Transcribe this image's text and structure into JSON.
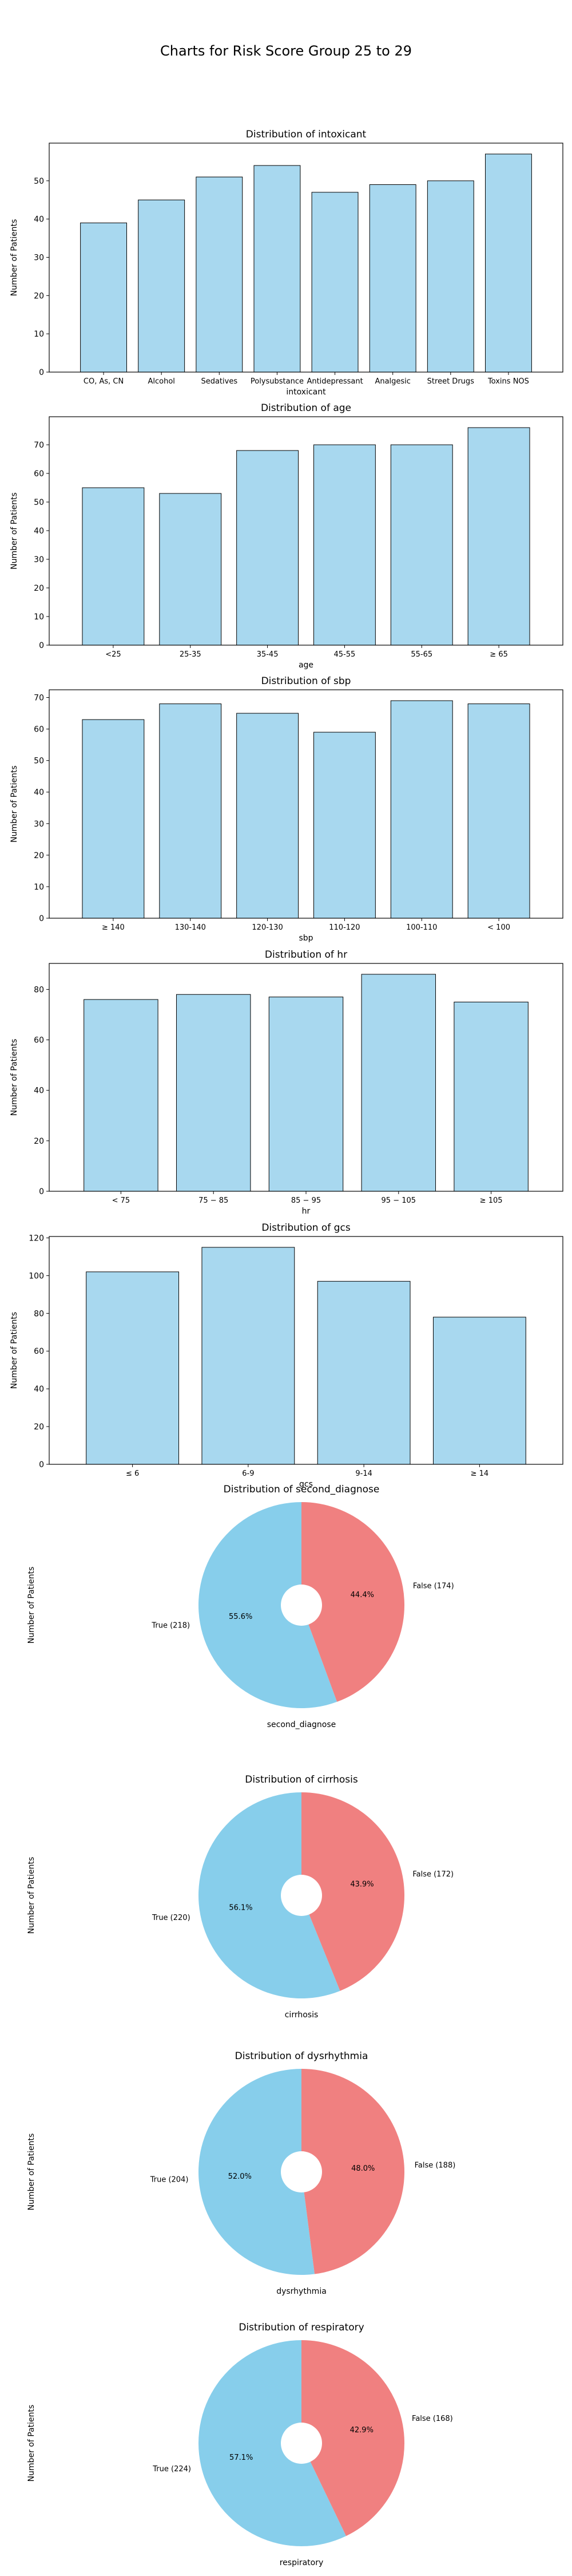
{
  "figure": {
    "title": "Charts for Risk Score Group 25 to 29"
  },
  "style": {
    "bar_color": "#a8d8ef",
    "pie_true_color": "#87ceeb",
    "pie_false_color": "#f08080"
  },
  "chart_data": [
    {
      "type": "bar",
      "title": "Distribution of intoxicant",
      "xlabel": "intoxicant",
      "ylabel": "Number of Patients",
      "categories": [
        "CO, As, CN",
        "Alcohol",
        "Sedatives",
        "Polysubstance",
        "Antidepressant",
        "Analgesic",
        "Street Drugs",
        "Toxins NOS"
      ],
      "values": [
        39,
        45,
        51,
        54,
        47,
        49,
        50,
        57
      ],
      "ylim": [
        0,
        59.85
      ],
      "yticks": [
        0,
        10,
        20,
        30,
        40,
        50
      ],
      "grid": false
    },
    {
      "type": "bar",
      "title": "Distribution of age",
      "xlabel": "age",
      "ylabel": "Number of Patients",
      "categories": [
        "<25",
        "25-35",
        "35-45",
        "45-55",
        "55-65",
        "≥ 65"
      ],
      "values": [
        55,
        53,
        68,
        70,
        70,
        76
      ],
      "ylim": [
        0,
        79.8
      ],
      "yticks": [
        0,
        10,
        20,
        30,
        40,
        50,
        60,
        70
      ],
      "grid": false
    },
    {
      "type": "bar",
      "title": "Distribution of sbp",
      "xlabel": "sbp",
      "ylabel": "Number of Patients",
      "categories": [
        "≥ 140",
        "130-140",
        "120-130",
        "110-120",
        "100-110",
        "< 100"
      ],
      "values": [
        63,
        68,
        65,
        59,
        69,
        68
      ],
      "ylim": [
        0,
        72.45
      ],
      "yticks": [
        0,
        10,
        20,
        30,
        40,
        50,
        60,
        70
      ],
      "grid": false
    },
    {
      "type": "bar",
      "title": "Distribution of hr",
      "xlabel": "hr",
      "ylabel": "Number of Patients",
      "categories": [
        "< 75",
        "75 − 85",
        "85 − 95",
        "95 − 105",
        "≥ 105"
      ],
      "values": [
        76,
        78,
        77,
        86,
        75
      ],
      "ylim": [
        0,
        90.3
      ],
      "yticks": [
        0,
        20,
        40,
        60,
        80
      ],
      "grid": false
    },
    {
      "type": "bar",
      "title": "Distribution of gcs",
      "xlabel": "gcs",
      "ylabel": "Number of Patients",
      "categories": [
        "≤ 6",
        "6-9",
        "9-14",
        "≥ 14"
      ],
      "values": [
        102,
        115,
        97,
        78
      ],
      "ylim": [
        0,
        120.75
      ],
      "yticks": [
        0,
        20,
        40,
        60,
        80,
        100,
        120
      ],
      "grid": false
    },
    {
      "type": "pie",
      "title": "Distribution of second_diagnose",
      "xlabel": "second_diagnose",
      "ylabel": "Number of Patients",
      "slices": [
        {
          "label": "True (218)",
          "value": 218,
          "pct": "55.6%"
        },
        {
          "label": "False (174)",
          "value": 174,
          "pct": "44.4%"
        }
      ]
    },
    {
      "type": "pie",
      "title": "Distribution of cirrhosis",
      "xlabel": "cirrhosis",
      "ylabel": "Number of Patients",
      "slices": [
        {
          "label": "True (220)",
          "value": 220,
          "pct": "56.1%"
        },
        {
          "label": "False (172)",
          "value": 172,
          "pct": "43.9%"
        }
      ]
    },
    {
      "type": "pie",
      "title": "Distribution of dysrhythmia",
      "xlabel": "dysrhythmia",
      "ylabel": "Number of Patients",
      "slices": [
        {
          "label": "True (204)",
          "value": 204,
          "pct": "52.0%"
        },
        {
          "label": "False (188)",
          "value": 188,
          "pct": "48.0%"
        }
      ]
    },
    {
      "type": "pie",
      "title": "Distribution of respiratory",
      "xlabel": "respiratory",
      "ylabel": "Number of Patients",
      "slices": [
        {
          "label": "True (224)",
          "value": 224,
          "pct": "57.1%"
        },
        {
          "label": "False (168)",
          "value": 168,
          "pct": "42.9%"
        }
      ]
    }
  ]
}
